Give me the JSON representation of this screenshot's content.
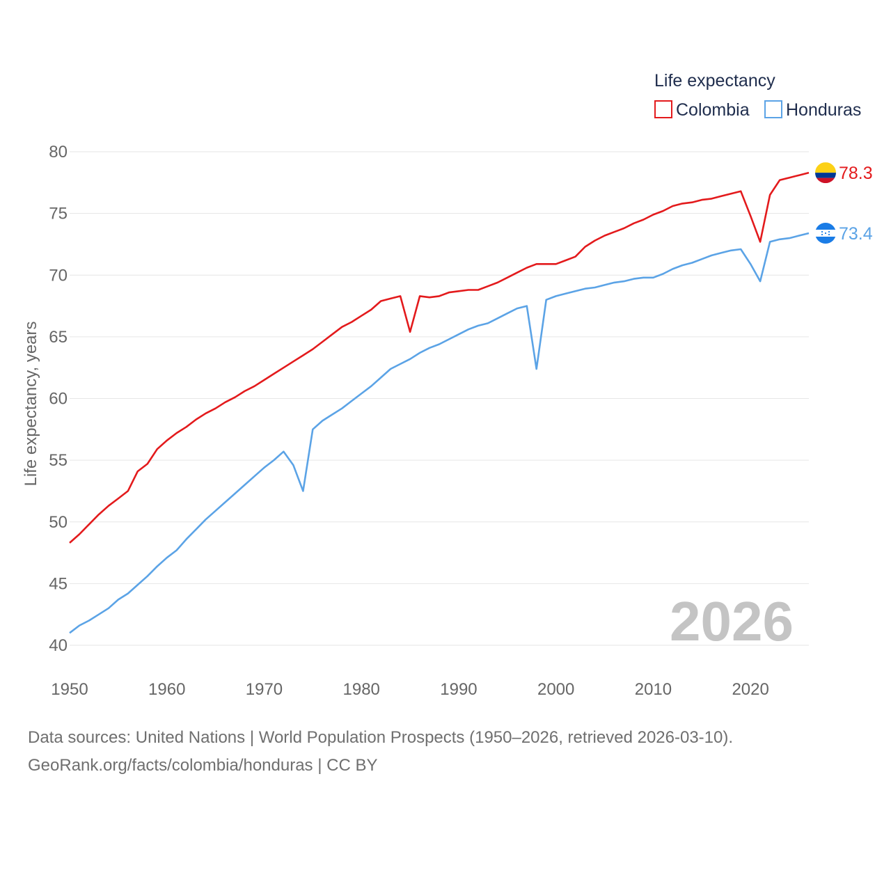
{
  "chart_data": {
    "type": "line",
    "title": "",
    "xlabel": "",
    "ylabel": "Life expectancy, years",
    "xlim": [
      1950,
      2026
    ],
    "ylim": [
      40,
      80
    ],
    "x_ticks": [
      "1950",
      "1960",
      "1970",
      "1980",
      "1990",
      "2000",
      "2010",
      "2020"
    ],
    "y_ticks": [
      "40",
      "45",
      "50",
      "55",
      "60",
      "65",
      "70",
      "75",
      "80"
    ],
    "legend": {
      "title": "Life expectancy",
      "position": "top-right"
    },
    "year_label": "2026",
    "x": [
      1950,
      1951,
      1952,
      1953,
      1954,
      1955,
      1956,
      1957,
      1958,
      1959,
      1960,
      1961,
      1962,
      1963,
      1964,
      1965,
      1966,
      1967,
      1968,
      1969,
      1970,
      1971,
      1972,
      1973,
      1974,
      1975,
      1976,
      1977,
      1978,
      1979,
      1980,
      1981,
      1982,
      1983,
      1984,
      1985,
      1986,
      1987,
      1988,
      1989,
      1990,
      1991,
      1992,
      1993,
      1994,
      1995,
      1996,
      1997,
      1998,
      1999,
      2000,
      2001,
      2002,
      2003,
      2004,
      2005,
      2006,
      2007,
      2008,
      2009,
      2010,
      2011,
      2012,
      2013,
      2014,
      2015,
      2016,
      2017,
      2018,
      2019,
      2020,
      2021,
      2022,
      2023,
      2024,
      2025,
      2026
    ],
    "series": [
      {
        "name": "Colombia",
        "color": "#e31a1c",
        "end_label": "78.3",
        "flag": "colombia-flag-icon",
        "values": [
          48.3,
          49.0,
          49.8,
          50.6,
          51.3,
          51.9,
          52.5,
          54.1,
          54.7,
          55.9,
          56.6,
          57.2,
          57.7,
          58.3,
          58.8,
          59.2,
          59.7,
          60.1,
          60.6,
          61.0,
          61.5,
          62.0,
          62.5,
          63.0,
          63.5,
          64.0,
          64.6,
          65.2,
          65.8,
          66.2,
          66.7,
          67.2,
          67.9,
          68.1,
          68.3,
          65.4,
          68.3,
          68.2,
          68.3,
          68.6,
          68.7,
          68.8,
          68.8,
          69.1,
          69.4,
          69.8,
          70.2,
          70.6,
          70.9,
          70.9,
          70.9,
          71.2,
          71.5,
          72.3,
          72.8,
          73.2,
          73.5,
          73.8,
          74.2,
          74.5,
          74.9,
          75.2,
          75.6,
          75.8,
          75.9,
          76.1,
          76.2,
          76.4,
          76.6,
          76.8,
          74.8,
          72.7,
          76.5,
          77.7,
          77.9,
          78.1,
          78.3
        ]
      },
      {
        "name": "Honduras",
        "color": "#5ba3e6",
        "end_label": "73.4",
        "flag": "honduras-flag-icon",
        "values": [
          41.0,
          41.6,
          42.0,
          42.5,
          43.0,
          43.7,
          44.2,
          44.9,
          45.6,
          46.4,
          47.1,
          47.7,
          48.6,
          49.4,
          50.2,
          50.9,
          51.6,
          52.3,
          53.0,
          53.7,
          54.4,
          55.0,
          55.7,
          54.6,
          52.5,
          57.5,
          58.2,
          58.7,
          59.2,
          59.8,
          60.4,
          61.0,
          61.7,
          62.4,
          62.8,
          63.2,
          63.7,
          64.1,
          64.4,
          64.8,
          65.2,
          65.6,
          65.9,
          66.1,
          66.5,
          66.9,
          67.3,
          67.5,
          62.4,
          68.0,
          68.3,
          68.5,
          68.7,
          68.9,
          69.0,
          69.2,
          69.4,
          69.5,
          69.7,
          69.8,
          69.8,
          70.1,
          70.5,
          70.8,
          71.0,
          71.3,
          71.6,
          71.8,
          72.0,
          72.1,
          70.9,
          69.5,
          72.7,
          72.9,
          73.0,
          73.2,
          73.4
        ]
      }
    ]
  },
  "footer": {
    "line1": "Data sources: United Nations | World Population Prospects (1950–2026, retrieved 2026-03-10).",
    "line2": "GeoRank.org/facts/colombia/honduras | CC BY"
  }
}
